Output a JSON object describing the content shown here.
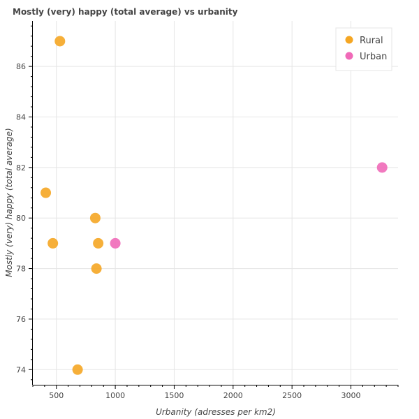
{
  "chart_data": {
    "type": "scatter",
    "title": "Mostly (very) happy (total average) vs urbanity",
    "xlabel": "Urbanity (adresses per km2)",
    "ylabel": "Mostly (very) happy (total average)",
    "xlim": [
      300,
      3400
    ],
    "ylim": [
      73.4,
      87.8
    ],
    "x_ticks": [
      500,
      1000,
      1500,
      2000,
      2500,
      3000
    ],
    "y_ticks": [
      74,
      76,
      78,
      80,
      82,
      84,
      86
    ],
    "grid": true,
    "legend_position": "top-right",
    "series": [
      {
        "name": "Rural",
        "color": "#f5a623",
        "points": [
          {
            "x": 530,
            "y": 87
          },
          {
            "x": 410,
            "y": 81
          },
          {
            "x": 830,
            "y": 80
          },
          {
            "x": 470,
            "y": 79
          },
          {
            "x": 855,
            "y": 79
          },
          {
            "x": 840,
            "y": 78
          },
          {
            "x": 680,
            "y": 74
          }
        ]
      },
      {
        "name": "Urban",
        "color": "#f06ab8",
        "points": [
          {
            "x": 1000,
            "y": 79
          },
          {
            "x": 3265,
            "y": 82
          }
        ]
      }
    ]
  }
}
